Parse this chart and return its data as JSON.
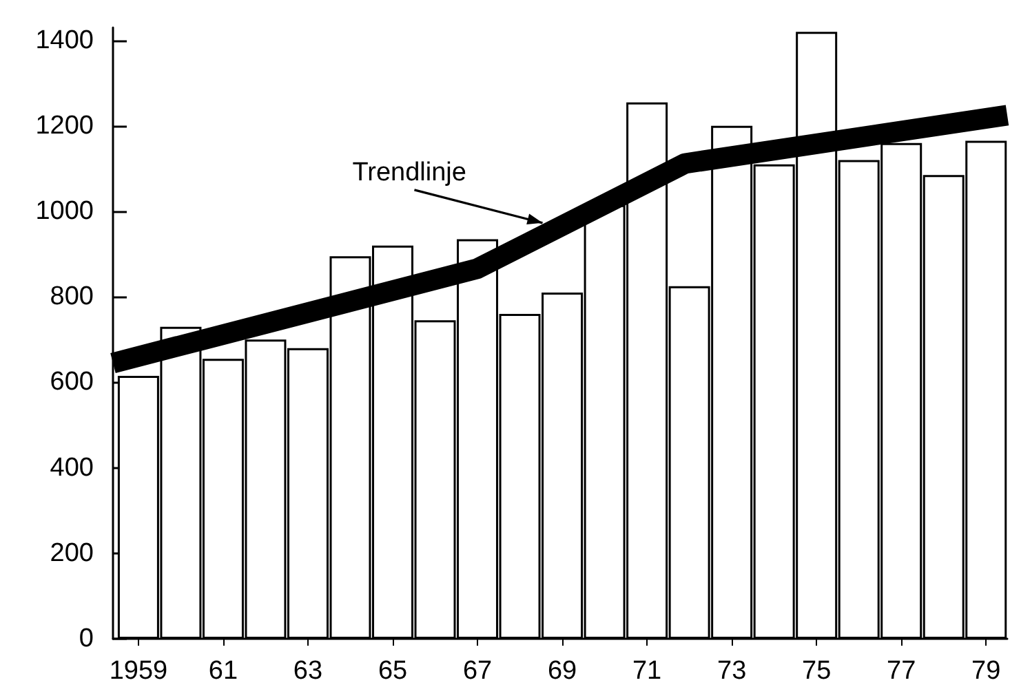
{
  "chart_data": {
    "type": "bar",
    "x": [
      1959,
      1960,
      1961,
      1962,
      1963,
      1964,
      1965,
      1966,
      1967,
      1968,
      1969,
      1970,
      1971,
      1972,
      1973,
      1974,
      1975,
      1976,
      1977,
      1978,
      1979
    ],
    "series": [
      {
        "color": "#ffffff",
        "values": [
          615,
          730,
          655,
          700,
          680,
          895,
          920,
          745,
          935,
          760,
          810,
          1015,
          1255,
          825,
          1200,
          1110,
          1420,
          1120,
          1160,
          1085,
          1165
        ]
      },
      {
        "type": "line",
        "color": "#000000",
        "x": [
          1958.4,
          1967,
          1971.9,
          1979.5
        ],
        "values": [
          645,
          866,
          1112,
          1225
        ]
      }
    ],
    "xlim": [
      1958.4,
      1979.5
    ],
    "xticks": [
      {
        "value": 1959,
        "label": "1959"
      },
      {
        "value": 1961,
        "label": "61"
      },
      {
        "value": 1963,
        "label": "63"
      },
      {
        "value": 1965,
        "label": "65"
      },
      {
        "value": 1967,
        "label": "67"
      },
      {
        "value": 1969,
        "label": "69"
      },
      {
        "value": 1971,
        "label": "71"
      },
      {
        "value": 1973,
        "label": "73"
      },
      {
        "value": 1975,
        "label": "75"
      },
      {
        "value": 1977,
        "label": "77"
      },
      {
        "value": 1979,
        "label": "79"
      }
    ],
    "ylim": [
      0,
      1430
    ],
    "yticks": [
      0,
      200,
      400,
      600,
      800,
      1000,
      1200,
      1400
    ],
    "annotations": [
      {
        "text": "Trendlinje",
        "x": 1968.6,
        "y": 960
      }
    ],
    "grid": false,
    "marker": "none",
    "line_style": "solid"
  }
}
